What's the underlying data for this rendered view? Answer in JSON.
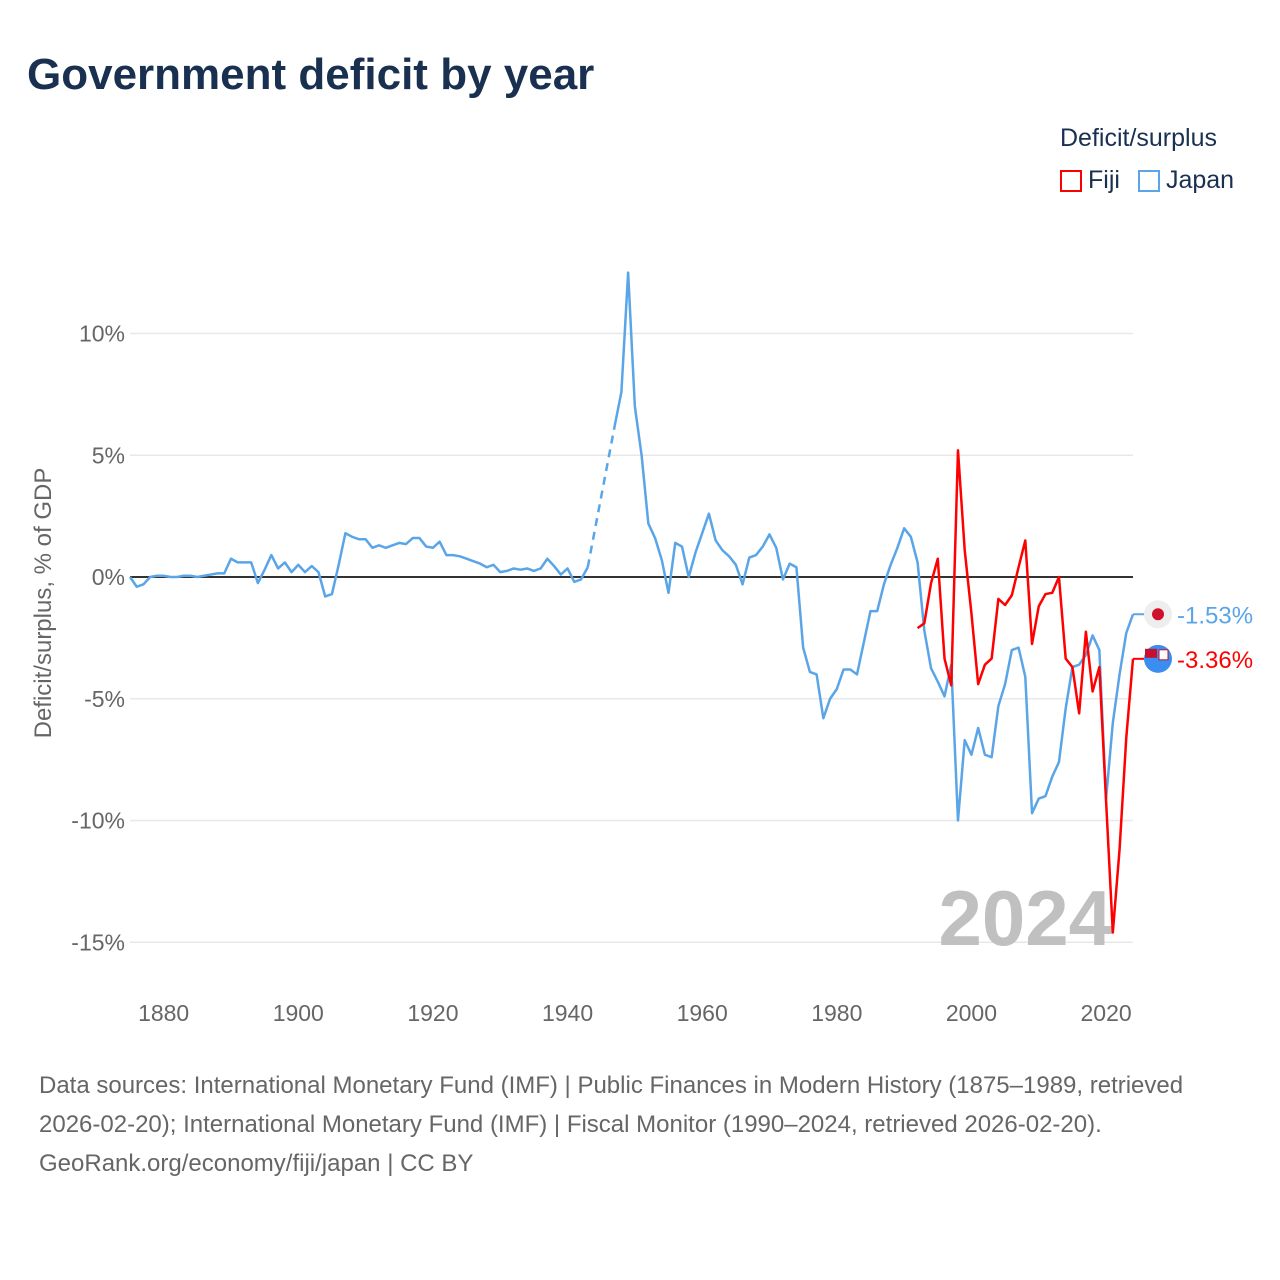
{
  "title": "Government deficit by year",
  "legend": {
    "title": "Deficit/surplus",
    "items": [
      {
        "label": "Fiji",
        "color": "#ff0000"
      },
      {
        "label": "Japan",
        "color": "#5aa5e8"
      }
    ]
  },
  "year_watermark": "2024",
  "footer": {
    "sources": "Data sources: International Monetary Fund (IMF) | Public Finances in Modern History (1875–1989, retrieved 2026-02-20); International Monetary Fund (IMF) | Fiscal Monitor (1990–2024, retrieved 2026-02-20).",
    "credit": "GeoRank.org/economy/fiji/japan | CC BY"
  },
  "chart_data": {
    "type": "line",
    "title": "Government deficit by year",
    "xlabel": "",
    "ylabel": "Deficit/surplus, % of GDP",
    "xlim": [
      1875,
      2024
    ],
    "ylim": [
      -16.5,
      13.5
    ],
    "xticks": [
      1880,
      1900,
      1920,
      1940,
      1960,
      1980,
      2000,
      2020
    ],
    "yticks": [
      10,
      5,
      0,
      -5,
      -10,
      -15
    ],
    "ytick_labels": [
      "10%",
      "5%",
      "0%",
      "-5%",
      "-10%",
      "-15%"
    ],
    "grid": true,
    "legend_position": "top-right",
    "series": [
      {
        "name": "Japan",
        "color": "#5aa5e8",
        "end_label": "-1.53%",
        "gap_years": [
          1944,
          1945,
          1946
        ],
        "start_year": 1875,
        "values": [
          0,
          -0.4,
          -0.3,
          0,
          0.05,
          0.05,
          0,
          0,
          0.05,
          0.05,
          0,
          0.05,
          0.1,
          0.15,
          0.15,
          0.75,
          0.6,
          0.6,
          0.6,
          -0.25,
          0.3,
          0.9,
          0.35,
          0.6,
          0.2,
          0.5,
          0.2,
          0.45,
          0.2,
          -0.8,
          -0.7,
          0.5,
          1.8,
          1.65,
          1.55,
          1.55,
          1.2,
          1.3,
          1.2,
          1.3,
          1.4,
          1.35,
          1.6,
          1.6,
          1.25,
          1.2,
          1.45,
          0.9,
          0.9,
          0.85,
          0.75,
          0.65,
          0.55,
          0.4,
          0.5,
          0.2,
          0.25,
          0.35,
          0.3,
          0.35,
          0.25,
          0.35,
          0.75,
          0.45,
          0.1,
          0.35,
          -0.2,
          -0.1,
          0.4,
          null,
          null,
          null,
          6.2,
          7.6,
          12.5,
          7.0,
          5.0,
          2.2,
          1.6,
          0.7,
          -0.65,
          1.4,
          1.25,
          0,
          1.0,
          1.8,
          2.6,
          1.5,
          1.1,
          0.85,
          0.5,
          -0.3,
          0.8,
          0.9,
          1.25,
          1.75,
          1.2,
          -0.1,
          0.55,
          0.4,
          -2.9,
          -3.9,
          -4.0,
          -5.8,
          -5.0,
          -4.6,
          -3.8,
          -3.8,
          -4.0,
          -2.7,
          -1.4,
          -1.4,
          -0.3,
          0.5,
          1.2,
          2.0,
          1.65,
          0.6,
          -2.2,
          -3.75,
          -4.3,
          -4.9,
          -3.6,
          -10.0,
          -6.7,
          -7.3,
          -6.2,
          -7.3,
          -7.4,
          -5.3,
          -4.4,
          -3.0,
          -2.9,
          -4.1,
          -9.7,
          -9.1,
          -9.0,
          -8.2,
          -7.6,
          -5.4,
          -3.7,
          -3.6,
          -3.2,
          -2.4,
          -3.0,
          -9.1,
          -6.0,
          -4.0,
          -2.3,
          -1.53
        ]
      },
      {
        "name": "Fiji",
        "color": "#ff0000",
        "end_label": "-3.36%",
        "start_year": 1992,
        "values": [
          -2.1,
          -1.9,
          -0.25,
          0.75,
          -3.35,
          -4.45,
          5.2,
          1.1,
          -1.5,
          -4.4,
          -3.6,
          -3.35,
          -0.9,
          -1.15,
          -0.75,
          0.4,
          1.5,
          -2.75,
          -1.2,
          -0.7,
          -0.65,
          0,
          -3.35,
          -3.7,
          -5.6,
          -2.25,
          -4.7,
          -3.7,
          -9.2,
          -14.6,
          -11.2,
          -6.6,
          -3.36
        ]
      }
    ]
  }
}
